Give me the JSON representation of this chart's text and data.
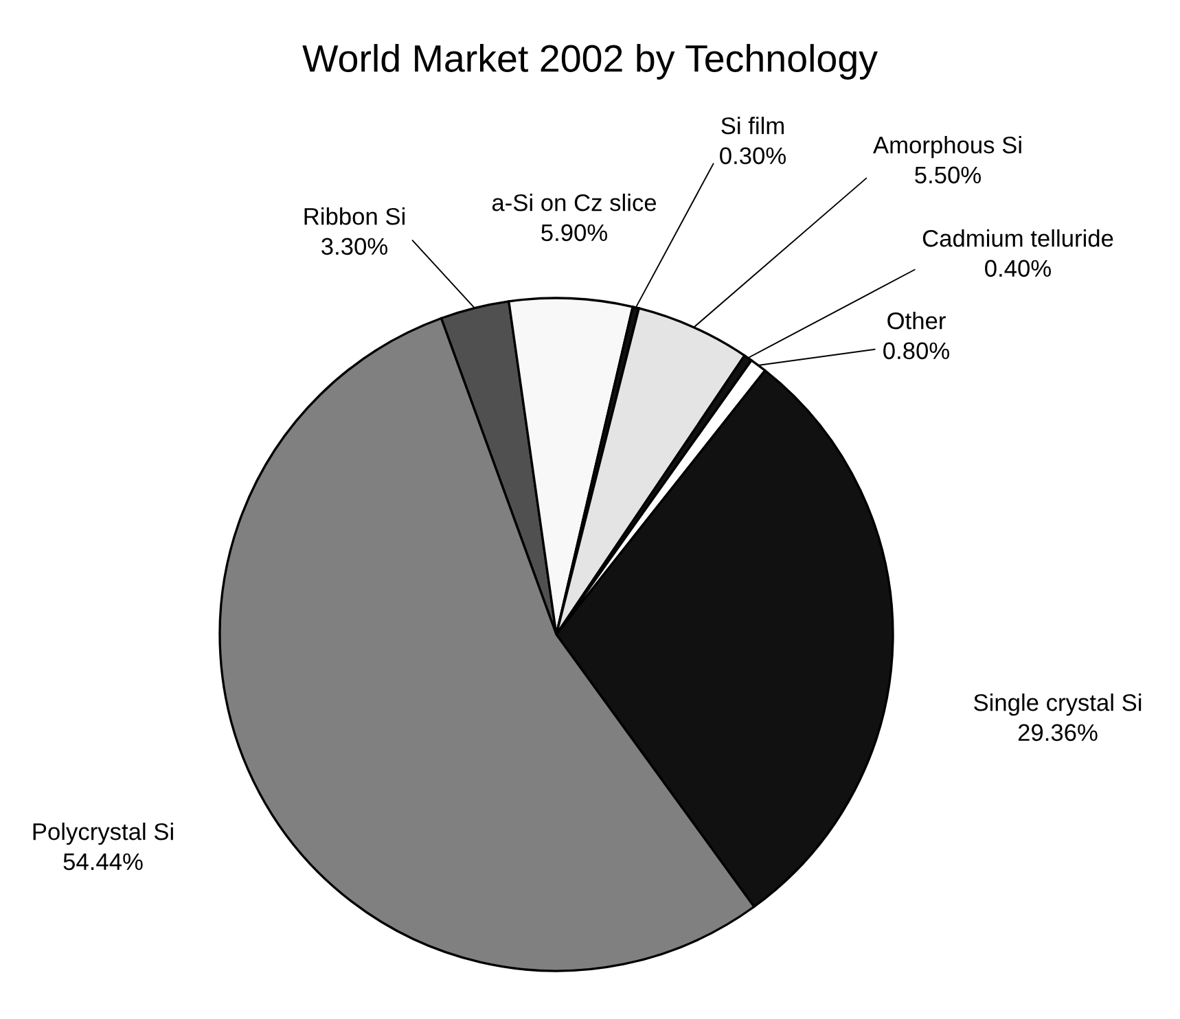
{
  "chart_data": {
    "type": "pie",
    "title": "World Market 2002 by Technology",
    "categories": [
      "Ribbon Si",
      "a-Si on Cz slice",
      "Si film",
      "Amorphous Si",
      "Cadmium telluride",
      "Other",
      "Single crystal Si",
      "Polycrystal Si"
    ],
    "values": [
      3.3,
      5.9,
      0.3,
      5.5,
      0.4,
      0.8,
      29.36,
      54.44
    ],
    "value_labels": [
      "3.30%",
      "5.90%",
      "0.30%",
      "5.50%",
      "0.40%",
      "0.80%",
      "29.36%",
      "54.44%"
    ],
    "colors": [
      "#505050",
      "#f8f8f8",
      "#111111",
      "#e4e4e4",
      "#111111",
      "#ffffff",
      "#111111",
      "#808080"
    ],
    "legend": false
  }
}
